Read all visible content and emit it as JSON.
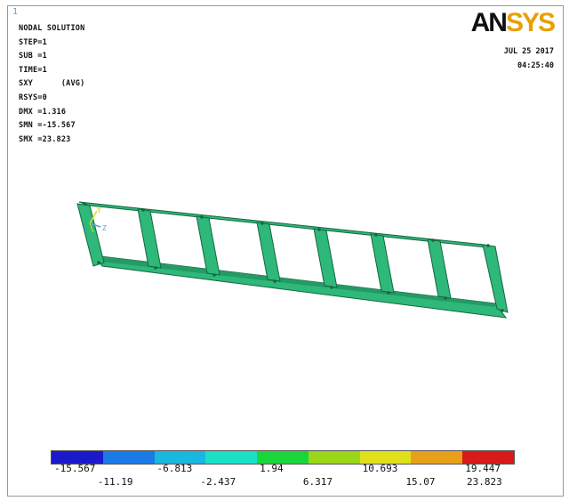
{
  "window_number": "1",
  "info_lines": [
    "NODAL SOLUTION",
    "STEP=1",
    "SUB =1",
    "TIME=1",
    "SXY      (AVG)",
    "RSYS=0",
    "DMX =1.316",
    "SMN =-15.567",
    "SMX =23.823"
  ],
  "logo": {
    "part1": "AN",
    "part2": "SYS"
  },
  "date": "JUL 25 2017",
  "time": "04:25:40",
  "triad": {
    "y": "Y",
    "z": "Z"
  },
  "colors": {
    "model_fill": "#2eb87a",
    "model_dark": "#15683f",
    "legend": [
      "#1a1acc",
      "#1a7be6",
      "#1ab7e0",
      "#1ae0c8",
      "#1ad63a",
      "#9ad61a",
      "#e0e01a",
      "#e8a01a",
      "#d81a1a"
    ]
  },
  "legend": {
    "top_labels": [
      "-15.567",
      "-6.813",
      "1.94",
      "10.693",
      "19.447"
    ],
    "bottom_labels": [
      "-11.19",
      "-2.437",
      "6.317",
      "15.07",
      "23.823"
    ]
  }
}
